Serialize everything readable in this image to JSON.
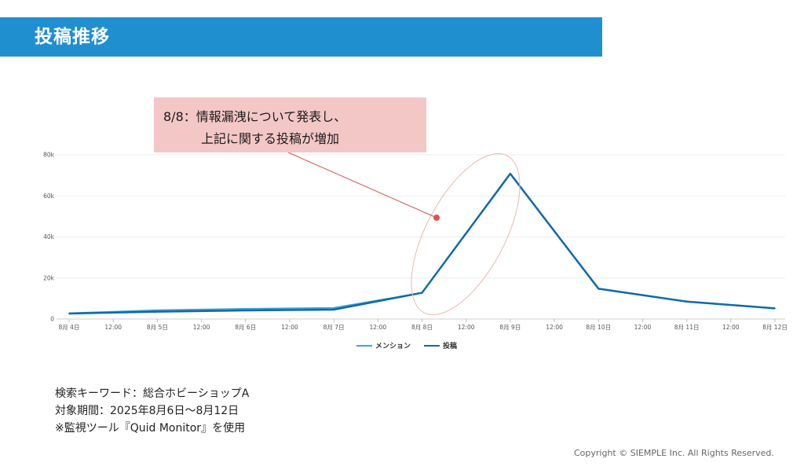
{
  "header": {
    "title": "投稿推移"
  },
  "callout": {
    "line1": "8/8：情報漏洩について発表し、",
    "line2": "上記に関する投稿が増加"
  },
  "chart_data": {
    "type": "line",
    "x": [
      "8月 4日",
      "12:00",
      "8月 5日",
      "12:00",
      "8月 6日",
      "12:00",
      "8月 7日",
      "12:00",
      "8月 8日",
      "12:00",
      "8月 9日",
      "12:00",
      "8月 10日",
      "12:00",
      "8月 11日",
      "12:00",
      "8月 12日"
    ],
    "y_ticks": [
      "0",
      "20k",
      "40k",
      "60k",
      "80k"
    ],
    "ylim": [
      0,
      80000
    ],
    "series": [
      {
        "name": "メンション",
        "color": "#3da0dc",
        "values": [
          2800,
          null,
          4300,
          null,
          5000,
          null,
          5400,
          null,
          12800,
          null,
          70800,
          null,
          14800,
          null,
          8500,
          null,
          5200
        ]
      },
      {
        "name": "投稿",
        "color": "#0f6aa8",
        "values": [
          2700,
          null,
          3600,
          null,
          4200,
          null,
          4600,
          null,
          12800,
          null,
          70800,
          null,
          14800,
          null,
          8500,
          null,
          5200
        ]
      }
    ],
    "grid": true,
    "legend": "bottom"
  },
  "notes": {
    "keyword": "検索キーワード：総合ホビーショップA",
    "period": "対象期間：2025年8月6日～8月12日",
    "tool": "※監視ツール『Quid Monitor』を使用"
  },
  "footer": {
    "copyright": "Copyright © SIEMPLE Inc. All Rights Reserved."
  },
  "colors": {
    "header": "#1f8fd0",
    "callout": "#f4c7c7",
    "highlight": "#d9534f"
  }
}
